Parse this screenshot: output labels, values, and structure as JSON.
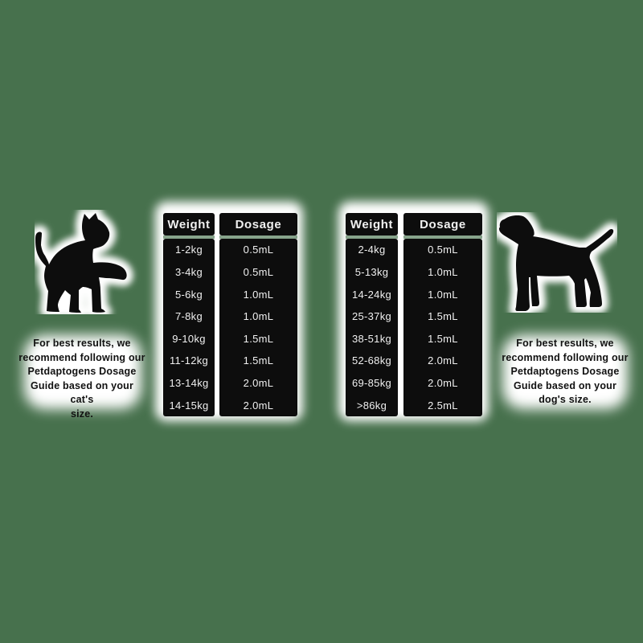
{
  "colors": {
    "background": "#47714d",
    "halo": "#ffffff",
    "box": "#0d0d0d",
    "box_text": "#f0f0f0",
    "note_text": "#111111"
  },
  "cat_section": {
    "icon": "cat-silhouette-icon",
    "table": {
      "headers": [
        "Weight",
        "Dosage"
      ],
      "rows": [
        [
          "1-2kg",
          "0.5mL"
        ],
        [
          "3-4kg",
          "0.5mL"
        ],
        [
          "5-6kg",
          "1.0mL"
        ],
        [
          "7-8kg",
          "1.0mL"
        ],
        [
          "9-10kg",
          "1.5mL"
        ],
        [
          "11-12kg",
          "1.5mL"
        ],
        [
          "13-14kg",
          "2.0mL"
        ],
        [
          "14-15kg",
          "2.0mL"
        ]
      ]
    },
    "note": "For best results, we recommend following our Petdaptogens Dosage Guide based on your cat's size.",
    "note_lines": [
      "For best results, we",
      "recommend following our",
      "Petdaptogens Dosage",
      "Guide based on your cat's",
      "size."
    ]
  },
  "dog_section": {
    "icon": "dog-silhouette-icon",
    "table": {
      "headers": [
        "Weight",
        "Dosage"
      ],
      "rows": [
        [
          "2-4kg",
          "0.5mL"
        ],
        [
          "5-13kg",
          "1.0mL"
        ],
        [
          "14-24kg",
          "1.0mL"
        ],
        [
          "25-37kg",
          "1.5mL"
        ],
        [
          "38-51kg",
          "1.5mL"
        ],
        [
          "52-68kg",
          "2.0mL"
        ],
        [
          "69-85kg",
          "2.0mL"
        ],
        [
          ">86kg",
          "2.5mL"
        ]
      ]
    },
    "note": "For best results, we recommend following our Petdaptogens Dosage Guide based on your dog's size.",
    "note_lines": [
      "For best results, we",
      "recommend following our",
      "Petdaptogens Dosage",
      "Guide based on your",
      "dog's size."
    ]
  }
}
